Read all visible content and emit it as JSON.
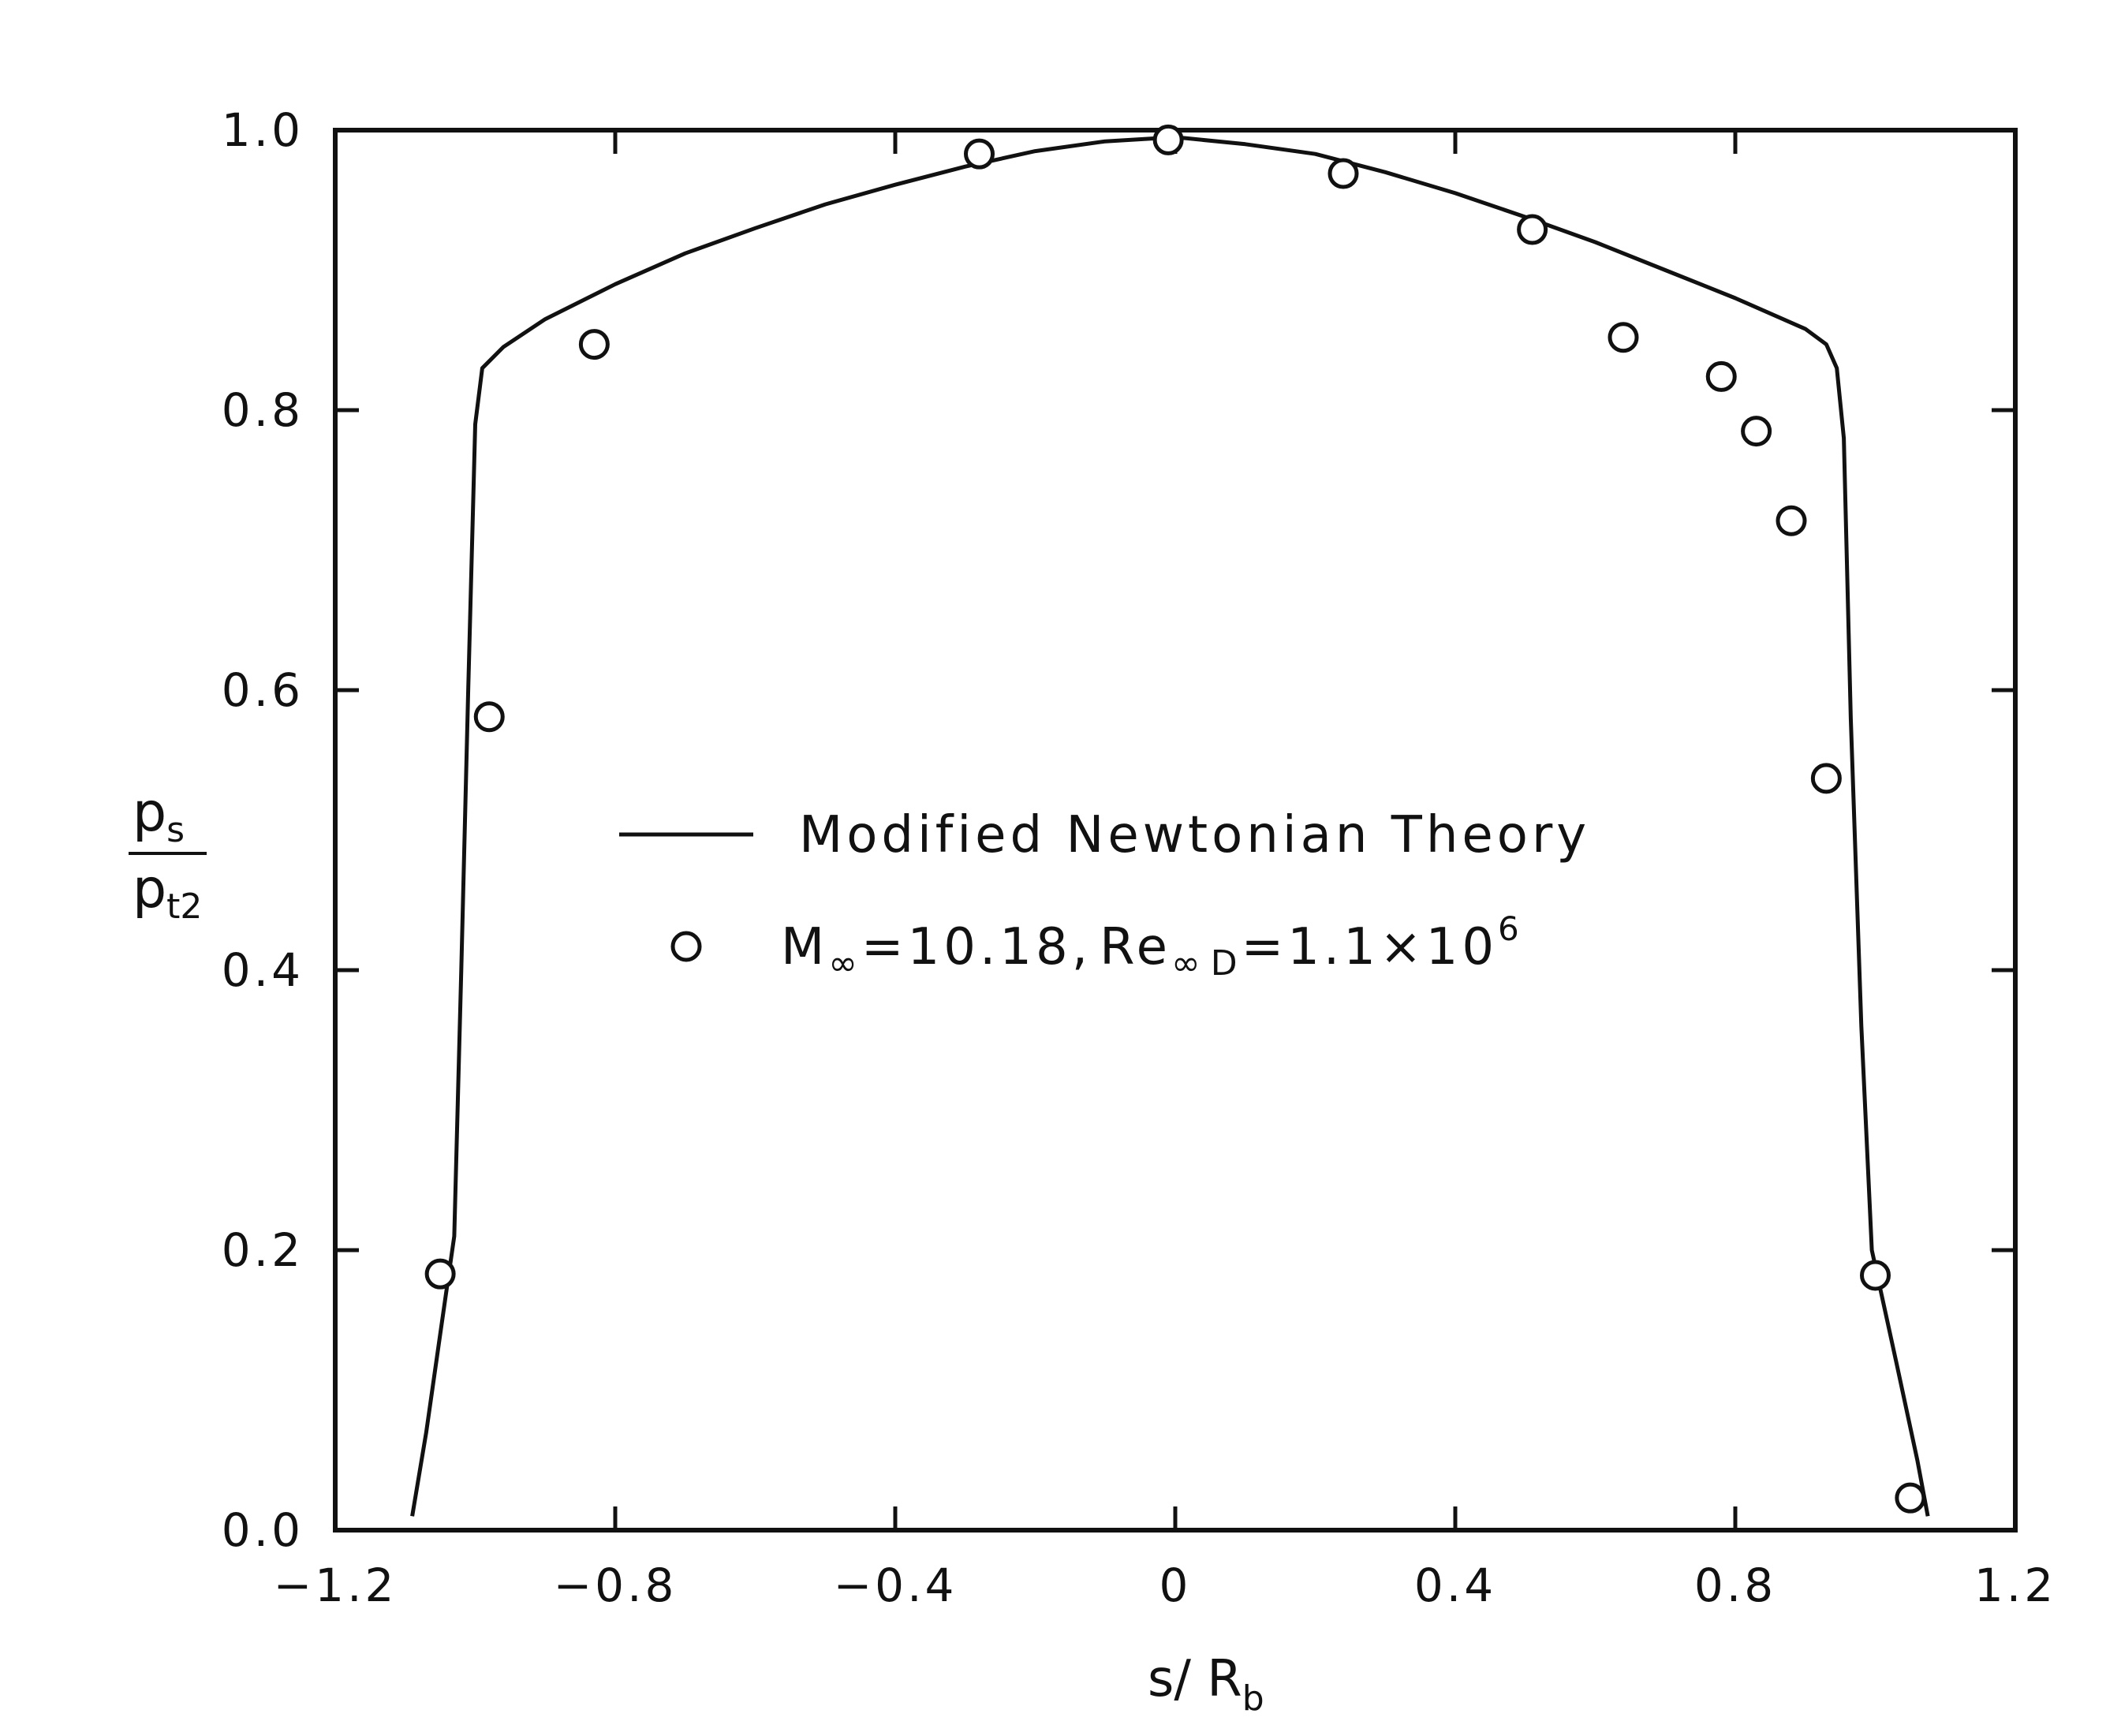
{
  "chart_data": {
    "type": "line",
    "xlabel": {
      "main": "s/ R",
      "sub": "b"
    },
    "ylabel": {
      "num_main": "p",
      "num_sub": "s",
      "den_main": "p",
      "den_sub": "t2"
    },
    "xlim": [
      -1.2,
      1.2
    ],
    "ylim": [
      0.0,
      1.0
    ],
    "x_ticks": [
      -1.2,
      -0.8,
      -0.4,
      0,
      0.4,
      0.8,
      1.2
    ],
    "x_tick_labels": [
      "−1.2",
      "−0.8",
      "−0.4",
      "0",
      "0.4",
      "0.8",
      "1.2"
    ],
    "y_ticks": [
      0.0,
      0.2,
      0.4,
      0.6,
      0.8,
      1.0
    ],
    "y_tick_labels": [
      "0.0",
      "0.2",
      "0.4",
      "0.6",
      "0.8",
      "1.0"
    ],
    "grid": false,
    "legend_position": "center",
    "series": [
      {
        "name": "Modified Newtonian Theory",
        "kind": "line",
        "color": "#111111",
        "points": [
          [
            -1.09,
            0.01
          ],
          [
            -1.07,
            0.07
          ],
          [
            -1.05,
            0.14
          ],
          [
            -1.03,
            0.21
          ],
          [
            -1.02,
            0.4
          ],
          [
            -1.01,
            0.6
          ],
          [
            -1.0,
            0.79
          ],
          [
            -0.99,
            0.83
          ],
          [
            -0.96,
            0.845
          ],
          [
            -0.9,
            0.865
          ],
          [
            -0.8,
            0.89
          ],
          [
            -0.7,
            0.912
          ],
          [
            -0.6,
            0.93
          ],
          [
            -0.5,
            0.947
          ],
          [
            -0.4,
            0.961
          ],
          [
            -0.3,
            0.974
          ],
          [
            -0.2,
            0.985
          ],
          [
            -0.1,
            0.992
          ],
          [
            0.0,
            0.995
          ],
          [
            0.1,
            0.99
          ],
          [
            0.2,
            0.983
          ],
          [
            0.3,
            0.97
          ],
          [
            0.4,
            0.955
          ],
          [
            0.5,
            0.938
          ],
          [
            0.6,
            0.92
          ],
          [
            0.7,
            0.9
          ],
          [
            0.8,
            0.88
          ],
          [
            0.9,
            0.858
          ],
          [
            0.93,
            0.847
          ],
          [
            0.945,
            0.83
          ],
          [
            0.955,
            0.78
          ],
          [
            0.965,
            0.58
          ],
          [
            0.98,
            0.36
          ],
          [
            0.995,
            0.2
          ],
          [
            1.03,
            0.12
          ],
          [
            1.06,
            0.05
          ],
          [
            1.075,
            0.01
          ]
        ]
      },
      {
        "name": "M∞=10.18, Re∞D=1.1×10⁶",
        "kind": "scatter",
        "marker": "open-circle",
        "color": "#111111",
        "points": [
          [
            -1.05,
            0.183
          ],
          [
            -0.98,
            0.581
          ],
          [
            -0.83,
            0.847
          ],
          [
            -0.28,
            0.983
          ],
          [
            -0.01,
            0.993
          ],
          [
            0.24,
            0.969
          ],
          [
            0.51,
            0.929
          ],
          [
            0.64,
            0.852
          ],
          [
            0.78,
            0.824
          ],
          [
            0.83,
            0.785
          ],
          [
            0.88,
            0.721
          ],
          [
            0.93,
            0.537
          ],
          [
            1.0,
            0.182
          ],
          [
            1.05,
            0.023
          ]
        ]
      }
    ]
  },
  "legend": {
    "line_label": "Modified Newtonian Theory",
    "marker_label": {
      "m": "M",
      "m_sub": "∞",
      "eq1": "=10.18,",
      "re": "Re",
      "re_sub1": "∞",
      "re_sub2": "D",
      "eq2": "=1.1×10",
      "exp": "6"
    }
  }
}
